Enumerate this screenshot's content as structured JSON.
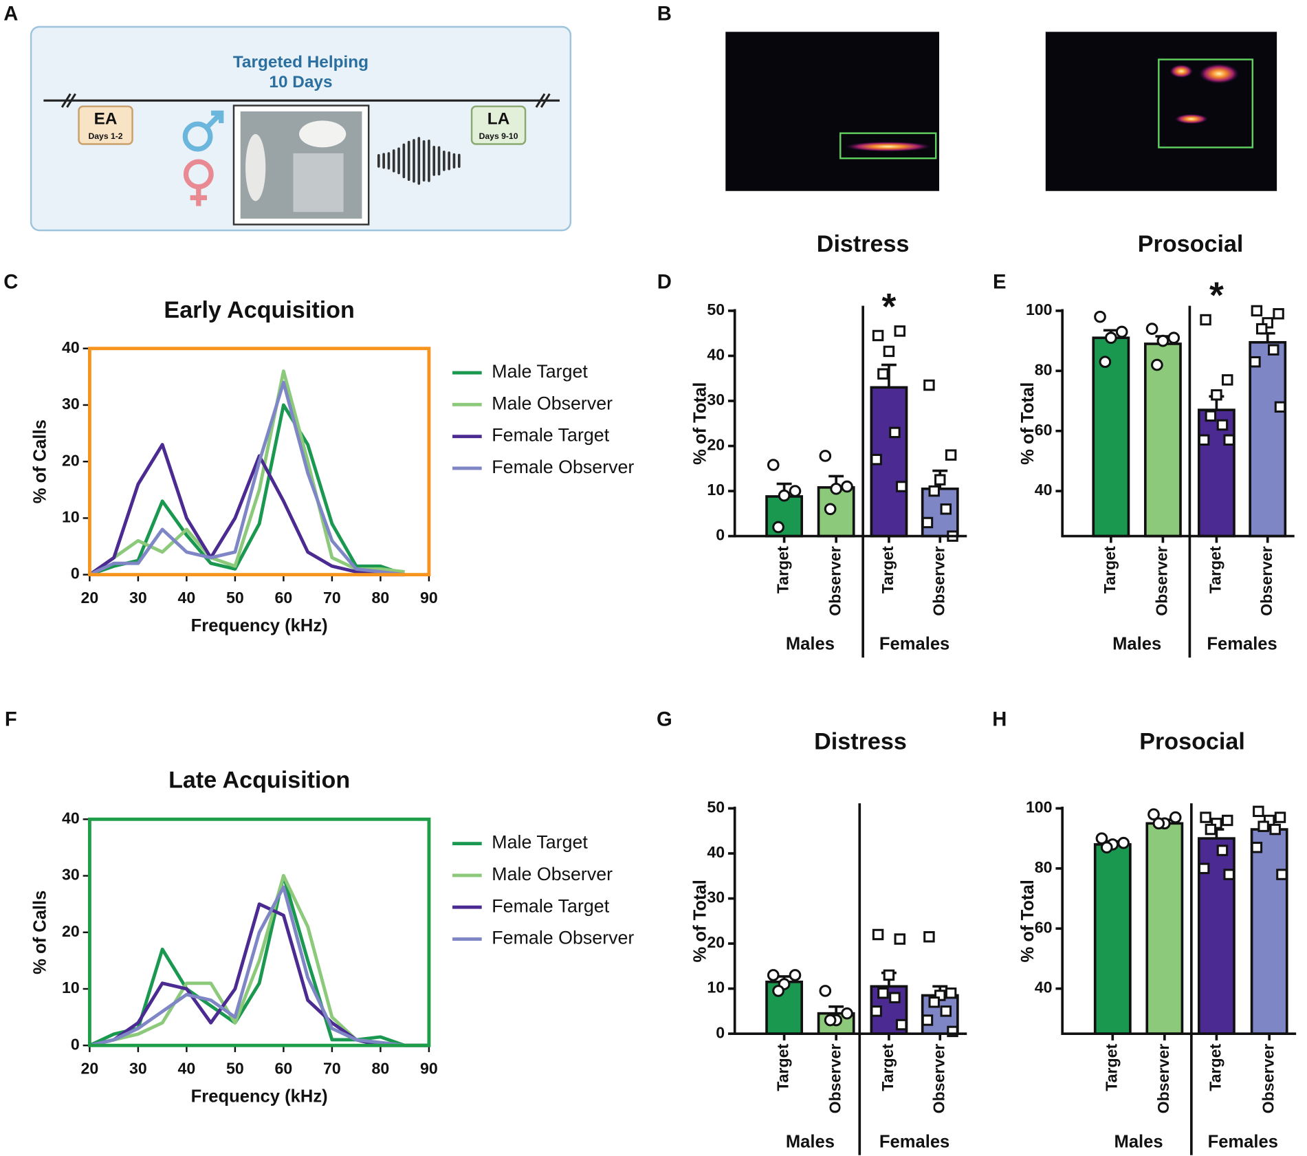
{
  "panel_labels": [
    "A",
    "B",
    "C",
    "D",
    "E",
    "F",
    "G",
    "H"
  ],
  "diagram": {
    "title": "Targeted Helping",
    "subtitle": "10 Days",
    "early": {
      "label": "EA",
      "days": "Days 1-2"
    },
    "late": {
      "label": "LA",
      "days": "Days 9-10"
    }
  },
  "chart_data": [
    {
      "type": "line",
      "title": "Early Acquisition",
      "xlabel": "Frequency (kHz)",
      "ylabel": "% of Calls",
      "frame_color": "#f7941d",
      "x": [
        20,
        25,
        30,
        35,
        40,
        45,
        50,
        55,
        60,
        65,
        70,
        75,
        80,
        85
      ],
      "series": [
        {
          "name": "Male Target",
          "color": "#1a9850",
          "values": [
            0,
            1.5,
            2.5,
            13,
            7,
            2,
            1,
            9,
            30,
            23,
            9,
            1.5,
            1.5,
            0
          ]
        },
        {
          "name": "Male Observer",
          "color": "#8cc97a",
          "values": [
            0,
            3,
            6,
            4,
            8,
            3,
            1.5,
            15,
            36,
            20,
            3,
            1,
            1,
            0.5
          ]
        },
        {
          "name": "Female Target",
          "color": "#4b2a91",
          "values": [
            0,
            3,
            16,
            23,
            10,
            3,
            10,
            21,
            13,
            4,
            1.5,
            0.5,
            0,
            0
          ]
        },
        {
          "name": "Female Observer",
          "color": "#7f86c6",
          "values": [
            0,
            2,
            2,
            8,
            4,
            3,
            4,
            20,
            34,
            18,
            6,
            1,
            0.5,
            0
          ]
        }
      ],
      "xlim": [
        20,
        90
      ],
      "xticks": [
        20,
        30,
        40,
        50,
        60,
        70,
        80,
        90
      ],
      "ylim": [
        0,
        40
      ],
      "yticks": [
        0,
        10,
        20,
        30,
        40
      ]
    },
    {
      "type": "bar",
      "title": "Distress",
      "ylabel": "% of Total",
      "categories": [
        "Target",
        "Observer",
        "Target",
        "Observer"
      ],
      "groups": [
        "Males",
        "Females"
      ],
      "colors": [
        "#1a9850",
        "#8cc97a",
        "#4b2a91",
        "#7f86c6"
      ],
      "point_shapes": [
        "circle",
        "circle",
        "square",
        "square"
      ],
      "values": [
        8.8,
        10.8,
        33,
        10.5
      ],
      "errors": [
        2.8,
        2.5,
        5,
        4
      ],
      "points": [
        [
          15.8,
          10,
          9,
          2
        ],
        [
          17.8,
          11,
          10.5,
          6
        ],
        [
          44.5,
          45.5,
          41,
          36,
          23,
          17,
          11
        ],
        [
          33.5,
          18,
          12.5,
          10,
          6,
          3,
          0
        ]
      ],
      "annotations": [
        null,
        null,
        "*",
        null
      ],
      "ylim": [
        0,
        50
      ],
      "yticks": [
        0,
        10,
        20,
        30,
        40,
        50
      ]
    },
    {
      "type": "bar",
      "title": "Prosocial",
      "ylabel": "% of Total",
      "categories": [
        "Target",
        "Observer",
        "Target",
        "Observer"
      ],
      "groups": [
        "Males",
        "Females"
      ],
      "colors": [
        "#1a9850",
        "#8cc97a",
        "#4b2a91",
        "#7f86c6"
      ],
      "point_shapes": [
        "circle",
        "circle",
        "square",
        "square"
      ],
      "values": [
        91,
        89,
        67,
        89.5
      ],
      "errors": [
        2.5,
        2.5,
        4.5,
        3
      ],
      "points": [
        [
          98,
          93,
          91,
          83
        ],
        [
          94,
          91,
          90,
          82
        ],
        [
          97,
          77,
          72,
          65,
          62,
          57,
          57
        ],
        [
          100,
          99,
          96,
          94,
          87,
          83,
          68
        ]
      ],
      "annotations": [
        null,
        null,
        "*",
        null
      ],
      "ylim": [
        25,
        100
      ],
      "yticks": [
        40,
        60,
        80,
        100
      ]
    },
    {
      "type": "line",
      "title": "Late Acquisition",
      "xlabel": "Frequency (kHz)",
      "ylabel": "% of Calls",
      "frame_color": "#1f9e4a",
      "x": [
        20,
        25,
        30,
        35,
        40,
        45,
        50,
        55,
        60,
        65,
        70,
        75,
        80,
        85,
        90
      ],
      "series": [
        {
          "name": "Male Target",
          "color": "#1a9850",
          "values": [
            0,
            2,
            3,
            17,
            10,
            7,
            4,
            11,
            30,
            15,
            1,
            1,
            1.5,
            0,
            0
          ]
        },
        {
          "name": "Male Observer",
          "color": "#8cc97a",
          "values": [
            0,
            1,
            2,
            4,
            11,
            11,
            4,
            15,
            30,
            21,
            5,
            1,
            0.5,
            0,
            0
          ]
        },
        {
          "name": "Female Target",
          "color": "#4b2a91",
          "values": [
            0,
            1,
            4,
            11,
            10,
            4,
            10,
            25,
            23,
            8,
            4,
            1,
            0,
            0,
            0
          ]
        },
        {
          "name": "Female Observer",
          "color": "#7f86c6",
          "values": [
            0,
            1,
            3,
            6,
            9,
            8,
            5,
            20,
            28,
            12,
            3,
            1,
            0.5,
            0,
            0
          ]
        }
      ],
      "xlim": [
        20,
        90
      ],
      "xticks": [
        20,
        30,
        40,
        50,
        60,
        70,
        80,
        90
      ],
      "ylim": [
        0,
        40
      ],
      "yticks": [
        0,
        10,
        20,
        30,
        40
      ]
    },
    {
      "type": "bar",
      "title": "Distress",
      "ylabel": "% of Total",
      "categories": [
        "Target",
        "Observer",
        "Target",
        "Observer"
      ],
      "groups": [
        "Males",
        "Females"
      ],
      "colors": [
        "#1a9850",
        "#8cc97a",
        "#4b2a91",
        "#7f86c6"
      ],
      "point_shapes": [
        "circle",
        "circle",
        "square",
        "square"
      ],
      "values": [
        11.5,
        4.5,
        10.5,
        8.5
      ],
      "errors": [
        1.2,
        1.5,
        3,
        2
      ],
      "points": [
        [
          13,
          13,
          11,
          9.5
        ],
        [
          9.5,
          4.5,
          3,
          3
        ],
        [
          22,
          21,
          13,
          9,
          8,
          5,
          2
        ],
        [
          21.5,
          9,
          8.5,
          7,
          5,
          3,
          0.5
        ]
      ],
      "annotations": [
        null,
        null,
        null,
        null
      ],
      "ylim": [
        0,
        50
      ],
      "yticks": [
        0,
        10,
        20,
        30,
        40,
        50
      ]
    },
    {
      "type": "bar",
      "title": "Prosocial",
      "ylabel": "% of Total",
      "categories": [
        "Target",
        "Observer",
        "Target",
        "Observer"
      ],
      "groups": [
        "Males",
        "Females"
      ],
      "colors": [
        "#1a9850",
        "#8cc97a",
        "#4b2a91",
        "#7f86c6"
      ],
      "point_shapes": [
        "circle",
        "circle",
        "square",
        "square"
      ],
      "values": [
        88,
        95,
        90,
        93
      ],
      "errors": [
        1,
        1.2,
        3,
        2.5
      ],
      "points": [
        [
          90,
          88.5,
          88,
          87
        ],
        [
          98,
          97,
          95,
          95
        ],
        [
          97,
          96,
          95,
          93,
          86,
          80,
          78
        ],
        [
          99,
          97,
          96,
          94,
          93,
          87,
          78
        ]
      ],
      "annotations": [
        null,
        null,
        null,
        null
      ],
      "ylim": [
        25,
        100
      ],
      "yticks": [
        40,
        60,
        80,
        100
      ]
    }
  ]
}
